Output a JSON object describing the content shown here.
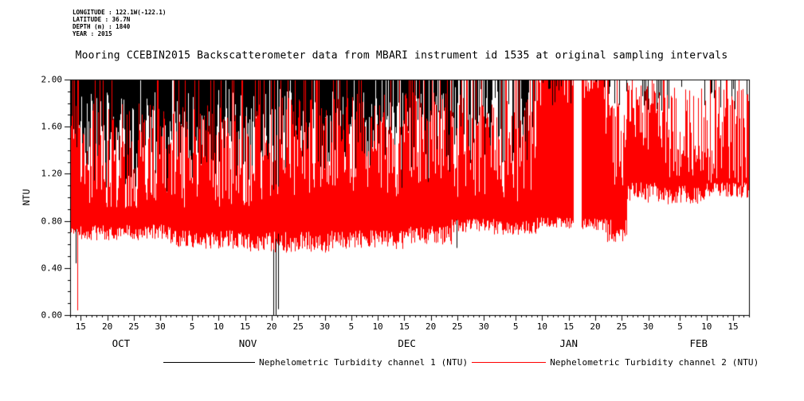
{
  "title": "Mooring CCEBIN2015 Backscatterometer data from MBARI instrument id 1535 at original sampling intervals",
  "meta": {
    "longitude": "LONGITUDE : 122.1W(-122.1)",
    "latitude": "LATITUDE : 36.7N",
    "depth": "DEPTH (m) : 1840",
    "year": "YEAR : 2015"
  },
  "chart_data": {
    "type": "line",
    "title": "Mooring CCEBIN2015 Backscatterometer data from MBARI instrument id 1535 at original sampling intervals",
    "xlabel": "",
    "ylabel": "NTU",
    "ylim": [
      0,
      2
    ],
    "grid": false,
    "legend_position": "bottom",
    "background": "#ffffff",
    "frame_color": "#000000",
    "y_ticks": [
      {
        "label": "0.00",
        "value": 0.0
      },
      {
        "label": "0.40",
        "value": 0.4
      },
      {
        "label": "0.80",
        "value": 0.8
      },
      {
        "label": "1.20",
        "value": 1.2
      },
      {
        "label": "1.60",
        "value": 1.6
      },
      {
        "label": "2.00",
        "value": 2.0
      }
    ],
    "y_minor_step": 0.1,
    "x_axis": {
      "days_total": 128,
      "ticks": [
        {
          "label": "15",
          "day": 2
        },
        {
          "label": "20",
          "day": 7
        },
        {
          "label": "25",
          "day": 12
        },
        {
          "label": "30",
          "day": 17
        },
        {
          "label": "5",
          "day": 23
        },
        {
          "label": "10",
          "day": 28
        },
        {
          "label": "15",
          "day": 33
        },
        {
          "label": "20",
          "day": 38
        },
        {
          "label": "25",
          "day": 43
        },
        {
          "label": "30",
          "day": 48
        },
        {
          "label": "5",
          "day": 53
        },
        {
          "label": "10",
          "day": 58
        },
        {
          "label": "15",
          "day": 63
        },
        {
          "label": "20",
          "day": 68
        },
        {
          "label": "25",
          "day": 73
        },
        {
          "label": "30",
          "day": 78
        },
        {
          "label": "5",
          "day": 84
        },
        {
          "label": "10",
          "day": 89
        },
        {
          "label": "15",
          "day": 94
        },
        {
          "label": "20",
          "day": 99
        },
        {
          "label": "25",
          "day": 104
        },
        {
          "label": "30",
          "day": 109
        },
        {
          "label": "5",
          "day": 115
        },
        {
          "label": "10",
          "day": 120
        },
        {
          "label": "15",
          "day": 125
        }
      ],
      "months": [
        {
          "label": "OCT",
          "day": 9.6
        },
        {
          "label": "NOV",
          "day": 33.5
        },
        {
          "label": "DEC",
          "day": 63.5
        },
        {
          "label": "JAN",
          "day": 94
        },
        {
          "label": "FEB",
          "day": 118.5
        }
      ]
    },
    "series": [
      {
        "name": "Nephelometric Turbidity channel 1 (NTU)",
        "color": "#000000",
        "clip_max": 2.0,
        "description": "Dense noisy signal clipped at 2.00 NTU; vertical excursions hang down from the top of the axis, densest Oct-Dec, sparse after mid-Jan; isolated deep spikes to 0.0 around Nov 19-20.",
        "envelope": [
          {
            "d0": 0,
            "d1": 19,
            "p": 0.97,
            "min_mean": 1.45,
            "min_spread": 0.45,
            "deep_p": 0.02,
            "deep_min": 1.05
          },
          {
            "d0": 19,
            "d1": 49,
            "p": 0.97,
            "min_mean": 1.5,
            "min_spread": 0.42,
            "deep_p": 0.02,
            "deep_min": 1.1
          },
          {
            "d0": 49,
            "d1": 58,
            "p": 0.93,
            "min_mean": 1.5,
            "min_spread": 0.4,
            "deep_p": 0.02,
            "deep_min": 1.0
          },
          {
            "d0": 58,
            "d1": 72,
            "p": 0.82,
            "min_mean": 1.55,
            "min_spread": 0.38,
            "deep_p": 0.03,
            "deep_min": 0.8
          },
          {
            "d0": 72,
            "d1": 95,
            "p": 0.65,
            "min_mean": 1.6,
            "min_spread": 0.34,
            "deep_p": 0.04,
            "deep_min": 0.9
          },
          {
            "d0": 96.5,
            "d1": 128,
            "p": 0.1,
            "min_mean": 1.85,
            "min_spread": 0.12,
            "deep_p": 0.03,
            "deep_min": 1.5
          }
        ],
        "spikes": [
          {
            "d": 1.05,
            "v": 0.44
          },
          {
            "d": 38.3,
            "v": 0.0
          },
          {
            "d": 38.7,
            "v": 0.0
          },
          {
            "d": 39.2,
            "v": 0.05
          },
          {
            "d": 72.9,
            "v": 0.57
          }
        ]
      },
      {
        "name": "Nephelometric Turbidity channel 2 (NTU)",
        "color": "#ff0000",
        "clip_max": 2.0,
        "description": "Solid red noisy band; lower edge near 0.6-0.8 NTU Oct-Dec, rising to ~1.0-1.1 NTU after late Jan; spiky upper edge frequently clipped at 2.00; data gap around Jan 16.",
        "envelope": [
          {
            "d0": 0,
            "d1": 2,
            "bottom": 0.72,
            "bspread": 0.05,
            "top": 1.7,
            "tspread": 0.3,
            "p2": 0.3
          },
          {
            "d0": 2,
            "d1": 19,
            "bottom": 0.7,
            "bspread": 0.07,
            "top": 1.35,
            "tspread": 0.45,
            "p2": 0.12
          },
          {
            "d0": 19,
            "d1": 34,
            "bottom": 0.64,
            "bspread": 0.08,
            "top": 1.35,
            "tspread": 0.45,
            "p2": 0.12
          },
          {
            "d0": 34,
            "d1": 49,
            "bottom": 0.62,
            "bspread": 0.09,
            "top": 1.4,
            "tspread": 0.45,
            "p2": 0.12
          },
          {
            "d0": 49,
            "d1": 63,
            "bottom": 0.64,
            "bspread": 0.08,
            "top": 1.45,
            "tspread": 0.45,
            "p2": 0.12
          },
          {
            "d0": 63,
            "d1": 72,
            "bottom": 0.68,
            "bspread": 0.08,
            "top": 1.5,
            "tspread": 0.4,
            "p2": 0.15
          },
          {
            "d0": 72,
            "d1": 80,
            "bottom": 0.76,
            "bspread": 0.06,
            "top": 1.45,
            "tspread": 0.45,
            "p2": 0.12
          },
          {
            "d0": 80,
            "d1": 88,
            "bottom": 0.74,
            "bspread": 0.06,
            "top": 1.4,
            "tspread": 0.45,
            "p2": 0.12
          },
          {
            "d0": 88,
            "d1": 95,
            "bottom": 0.78,
            "bspread": 0.05,
            "top": 1.9,
            "tspread": 0.12,
            "p2": 0.5
          },
          {
            "d0": 96.5,
            "d1": 101,
            "bottom": 0.77,
            "bspread": 0.05,
            "top": 1.92,
            "tspread": 0.1,
            "p2": 0.5
          },
          {
            "d0": 101,
            "d1": 105,
            "bottom": 0.73,
            "bspread": 0.11,
            "top": 1.45,
            "tspread": 0.35,
            "p2": 0.1
          },
          {
            "d0": 105,
            "d1": 112,
            "bottom": 1.04,
            "bspread": 0.09,
            "top": 1.7,
            "tspread": 0.3,
            "p2": 0.12
          },
          {
            "d0": 112,
            "d1": 120,
            "bottom": 1.02,
            "bspread": 0.08,
            "top": 1.55,
            "tspread": 0.4,
            "p2": 0.1
          },
          {
            "d0": 120,
            "d1": 128,
            "bottom": 1.06,
            "bspread": 0.07,
            "top": 1.5,
            "tspread": 0.45,
            "p2": 0.12
          }
        ],
        "gap": {
          "d0": 95,
          "d1": 96.5
        },
        "spikes": [
          {
            "d": 1.3,
            "v": 0.04,
            "from": 0.72
          }
        ]
      }
    ]
  }
}
